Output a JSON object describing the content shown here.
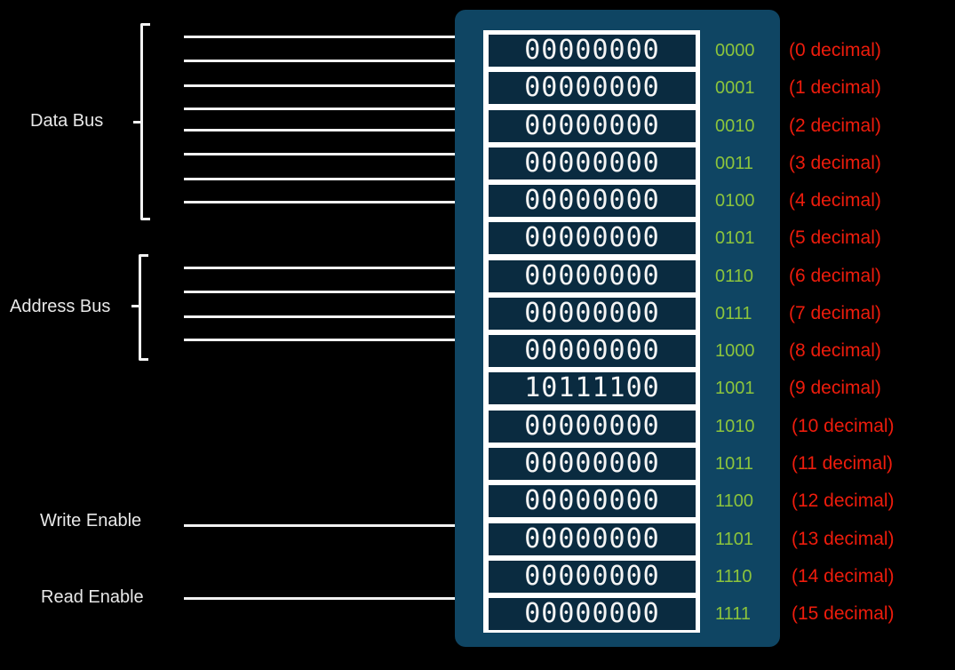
{
  "labels": {
    "data_bus": "Data Bus",
    "address_bus": "Address Bus",
    "write_enable": "Write Enable",
    "read_enable": "Read Enable"
  },
  "colors": {
    "panel": "#0f4563",
    "cell": "#0a2b40",
    "address": "#8cc43c",
    "decimal": "#ee1c0c"
  },
  "memory": [
    {
      "value": "00000000",
      "address": "0000",
      "decimal": "(0 decimal)"
    },
    {
      "value": "00000000",
      "address": "0001",
      "decimal": "(1 decimal)"
    },
    {
      "value": "00000000",
      "address": "0010",
      "decimal": "(2 decimal)"
    },
    {
      "value": "00000000",
      "address": "0011",
      "decimal": "(3 decimal)"
    },
    {
      "value": "00000000",
      "address": "0100",
      "decimal": "(4 decimal)"
    },
    {
      "value": "00000000",
      "address": "0101",
      "decimal": "(5 decimal)"
    },
    {
      "value": "00000000",
      "address": "0110",
      "decimal": "(6 decimal)"
    },
    {
      "value": "00000000",
      "address": "0111",
      "decimal": "(7 decimal)"
    },
    {
      "value": "00000000",
      "address": "1000",
      "decimal": "(8 decimal)"
    },
    {
      "value": "10111100",
      "address": "1001",
      "decimal": "(9 decimal)"
    },
    {
      "value": "00000000",
      "address": "1010",
      "decimal": "(10 decimal)"
    },
    {
      "value": "00000000",
      "address": "1011",
      "decimal": "(11 decimal)"
    },
    {
      "value": "00000000",
      "address": "1100",
      "decimal": "(12 decimal)"
    },
    {
      "value": "00000000",
      "address": "1101",
      "decimal": "(13 decimal)"
    },
    {
      "value": "00000000",
      "address": "1110",
      "decimal": "(14 decimal)"
    },
    {
      "value": "00000000",
      "address": "1111",
      "decimal": "(15 decimal)"
    }
  ]
}
